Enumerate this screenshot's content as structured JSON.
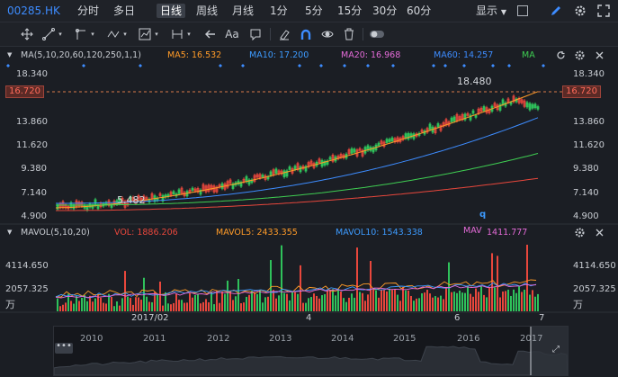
{
  "toolbar": {
    "symbol": "00285.HK",
    "tabs": [
      "分时",
      "多日",
      "日线",
      "周线",
      "月线",
      "1分",
      "5分",
      "15分",
      "30分",
      "60分"
    ],
    "active_tab": "日线",
    "display_label": "显示"
  },
  "main_chart": {
    "indicator_label": "MA(5,10,20,60,120,250,1,1)",
    "ma5": "MA5: 16.532",
    "ma10": "MA10: 17.200",
    "ma20": "MA20: 16.968",
    "ma60": "MA60: 14.257",
    "ma_btn": "MA",
    "y_labels": [
      "18.340",
      "16.720",
      "13.860",
      "11.620",
      "9.380",
      "7.140",
      "4.900"
    ],
    "current_price": "16.720",
    "annotation_high": "18.480",
    "annotation_low": "5.482",
    "marker_q": "q",
    "colors": {
      "ma5": "#ff9b28",
      "ma10": "#3d9bff",
      "ma20": "#e46bd8",
      "ma60": "#3d8cff",
      "ma120": "#3fce52",
      "ma250": "#e8473c",
      "up": "#e8473c",
      "down": "#2fc15b"
    }
  },
  "volume_chart": {
    "indicator_label": "MAVOL(5,10,20)",
    "vol": "VOL: 1886.206",
    "mavol5": "MAVOL5: 2433.355",
    "mavol10": "MAVOL10: 1543.338",
    "mav_btn": "MAV",
    "mav_val": "1411.777",
    "y_labels": [
      "4114.650",
      "2057.325"
    ],
    "unit": "万"
  },
  "x_axis": [
    "2017/02",
    "4",
    "6",
    "7"
  ],
  "navigator": {
    "years": [
      "2010",
      "2011",
      "2012",
      "2013",
      "2014",
      "2015",
      "2016",
      "2017"
    ],
    "dots": "•••"
  }
}
